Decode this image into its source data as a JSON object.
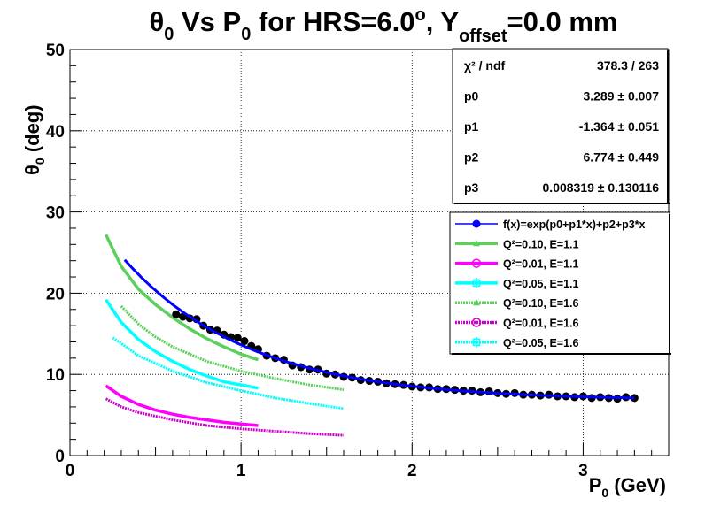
{
  "title": {
    "theta": "θ",
    "sub0": "0",
    "part1": " Vs P",
    "sub1": "0",
    "part2": " for HRS=6.0",
    "deg": "o",
    "part3": ", Y",
    "sub2": "offset",
    "part4": "=0.0 mm"
  },
  "axes": {
    "ylabel_main": "θ",
    "ylabel_sub": "0",
    "ylabel_rest": " (deg)",
    "xlabel_main": "P",
    "xlabel_sub": "0",
    "xlabel_rest": " (GeV)"
  },
  "stats": {
    "rows": [
      {
        "label": "χ² / ndf",
        "value": "378.3 / 263"
      },
      {
        "label": "p0",
        "value": "3.289 ± 0.007"
      },
      {
        "label": "p1",
        "value": "-1.364 ± 0.051"
      },
      {
        "label": "p2",
        "value": "6.774 ± 0.449"
      },
      {
        "label": "p3",
        "value": "0.008319 ± 0.130116"
      }
    ]
  },
  "legend": {
    "items": [
      {
        "text": "f(x)=exp(p0+p1*x)+p2+p3*x",
        "color": "#0000ff",
        "marker": "dot",
        "style": "solid"
      },
      {
        "text": "Q²=0.10, E=1.1",
        "color": "#5ccf5c",
        "marker": "triangle",
        "style": "solid"
      },
      {
        "text": "Q²=0.01, E=1.1",
        "color": "#ff00ff",
        "marker": "circle",
        "style": "solid"
      },
      {
        "text": "Q²=0.05, E=1.1",
        "color": "#00ffff",
        "marker": "cross",
        "style": "solid"
      },
      {
        "text": "Q²=0.10, E=1.6",
        "color": "#5ccf5c",
        "marker": "triangle",
        "style": "dashed"
      },
      {
        "text": "Q²=0.01, E=1.6",
        "color": "#cc00cc",
        "marker": "circle",
        "style": "dashed"
      },
      {
        "text": "Q²=0.05, E=1.6",
        "color": "#00ffff",
        "marker": "cross",
        "style": "dashed"
      }
    ]
  },
  "chart_data": {
    "type": "scatter",
    "xlim": [
      0,
      3.5
    ],
    "ylim": [
      0,
      50
    ],
    "x_ticks": [
      0,
      1,
      2,
      3
    ],
    "y_ticks": [
      0,
      10,
      20,
      30,
      40,
      50
    ],
    "grid": true,
    "legend_position": "right",
    "fit": {
      "p0": 3.289,
      "p1": -1.364,
      "p2": 6.774,
      "p3": 0.008319,
      "x_range": [
        0.32,
        3.3
      ],
      "color": "#0000ff"
    },
    "data_points": {
      "color": "#000000",
      "x": [
        0.62,
        0.66,
        0.7,
        0.74,
        0.78,
        0.82,
        0.86,
        0.9,
        0.94,
        0.98,
        1.02,
        1.06,
        1.1,
        1.15,
        1.2,
        1.25,
        1.3,
        1.35,
        1.4,
        1.45,
        1.5,
        1.55,
        1.6,
        1.65,
        1.7,
        1.75,
        1.8,
        1.85,
        1.9,
        1.95,
        2.0,
        2.05,
        2.1,
        2.15,
        2.2,
        2.25,
        2.3,
        2.35,
        2.4,
        2.45,
        2.5,
        2.55,
        2.6,
        2.65,
        2.7,
        2.75,
        2.8,
        2.85,
        2.9,
        2.95,
        3.0,
        3.05,
        3.1,
        3.15,
        3.2,
        3.25,
        3.3
      ],
      "y": [
        17.4,
        17.1,
        16.9,
        16.8,
        16.0,
        15.5,
        15.4,
        14.9,
        14.6,
        14.5,
        14.1,
        13.5,
        13.1,
        12.3,
        12.0,
        11.8,
        11.1,
        10.9,
        10.6,
        10.6,
        10.1,
        10.0,
        9.7,
        9.6,
        9.3,
        9.2,
        9.1,
        8.9,
        8.8,
        8.7,
        8.5,
        8.4,
        8.4,
        8.2,
        8.2,
        8.1,
        8.0,
        8.0,
        7.8,
        7.9,
        7.7,
        7.6,
        7.7,
        7.5,
        7.5,
        7.4,
        7.5,
        7.3,
        7.3,
        7.2,
        7.3,
        7.1,
        7.2,
        7.1,
        7.0,
        7.2,
        7.1
      ]
    },
    "series": [
      {
        "name": "Q²=0.10, E=1.1",
        "color": "#5ccf5c",
        "style": "solid",
        "x": [
          0.21,
          0.3,
          0.4,
          0.5,
          0.6,
          0.7,
          0.8,
          0.9,
          1.0,
          1.1
        ],
        "y": [
          27.2,
          23.3,
          20.5,
          18.6,
          17.0,
          15.6,
          14.4,
          13.4,
          12.5,
          11.8
        ]
      },
      {
        "name": "Q²=0.01, E=1.1",
        "color": "#ff00ff",
        "style": "solid",
        "x": [
          0.21,
          0.3,
          0.4,
          0.5,
          0.6,
          0.7,
          0.8,
          0.9,
          1.0,
          1.1
        ],
        "y": [
          8.6,
          7.3,
          6.3,
          5.6,
          5.1,
          4.7,
          4.4,
          4.1,
          3.9,
          3.7
        ]
      },
      {
        "name": "Q²=0.05, E=1.1",
        "color": "#00ffff",
        "style": "solid",
        "x": [
          0.21,
          0.3,
          0.4,
          0.5,
          0.6,
          0.7,
          0.8,
          0.9,
          1.0,
          1.1
        ],
        "y": [
          19.2,
          16.4,
          14.3,
          12.8,
          11.6,
          10.6,
          9.8,
          9.1,
          8.7,
          8.3
        ]
      },
      {
        "name": "Q²=0.10, E=1.6",
        "color": "#5ccf5c",
        "style": "dashed",
        "x": [
          0.3,
          0.4,
          0.5,
          0.6,
          0.8,
          1.0,
          1.2,
          1.4,
          1.6
        ],
        "y": [
          18.4,
          16.2,
          14.6,
          13.4,
          11.6,
          10.4,
          9.5,
          8.7,
          8.1
        ]
      },
      {
        "name": "Q²=0.01, E=1.6",
        "color": "#cc00cc",
        "style": "dashed",
        "x": [
          0.21,
          0.3,
          0.4,
          0.6,
          0.8,
          1.0,
          1.2,
          1.4,
          1.6
        ],
        "y": [
          7.0,
          6.0,
          5.3,
          4.4,
          3.7,
          3.3,
          3.0,
          2.7,
          2.5
        ]
      },
      {
        "name": "Q²=0.05, E=1.6",
        "color": "#00ffff",
        "style": "dashed",
        "x": [
          0.25,
          0.3,
          0.4,
          0.6,
          0.8,
          1.0,
          1.2,
          1.4,
          1.6
        ],
        "y": [
          14.5,
          13.8,
          12.3,
          10.4,
          9.0,
          8.0,
          7.1,
          6.4,
          5.8
        ]
      }
    ]
  }
}
